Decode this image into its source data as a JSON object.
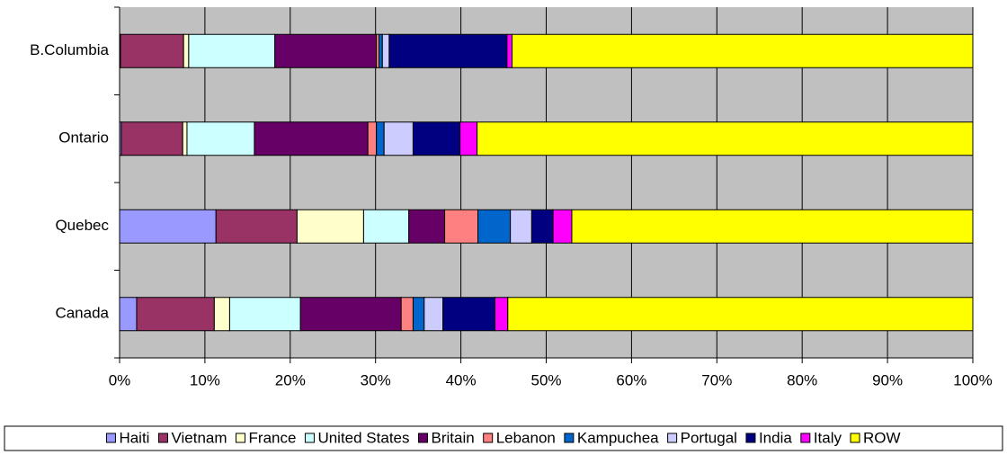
{
  "chart_data": {
    "type": "stacked_bar_horizontal",
    "categories": [
      "Canada",
      "Quebec",
      "Ontario",
      "B.Columbia"
    ],
    "series": [
      {
        "name": "Haiti",
        "color": "#9999ff",
        "values": [
          2.0,
          11.3,
          0.2,
          0.1
        ]
      },
      {
        "name": "Vietnam",
        "color": "#993366",
        "values": [
          9.1,
          9.5,
          7.2,
          7.4
        ]
      },
      {
        "name": "France",
        "color": "#ffffcc",
        "values": [
          1.8,
          7.8,
          0.5,
          0.6
        ]
      },
      {
        "name": "United States",
        "color": "#ccffff",
        "values": [
          8.3,
          5.3,
          7.9,
          10.1
        ]
      },
      {
        "name": "Britain",
        "color": "#660066",
        "values": [
          11.8,
          4.2,
          13.3,
          11.9
        ]
      },
      {
        "name": "Lebanon",
        "color": "#ff8080",
        "values": [
          1.4,
          3.9,
          1.0,
          0.3
        ]
      },
      {
        "name": "Kampuchea",
        "color": "#0066cc",
        "values": [
          1.3,
          3.8,
          0.9,
          0.4
        ]
      },
      {
        "name": "Portugal",
        "color": "#ccccff",
        "values": [
          2.2,
          2.5,
          3.4,
          0.8
        ]
      },
      {
        "name": "India",
        "color": "#000080",
        "values": [
          6.1,
          2.5,
          5.5,
          13.8
        ]
      },
      {
        "name": "Italy",
        "color": "#ff00ff",
        "values": [
          1.5,
          2.2,
          2.0,
          0.6
        ]
      },
      {
        "name": "ROW",
        "color": "#ffff00",
        "values": [
          54.5,
          47.0,
          58.1,
          54.0
        ]
      }
    ],
    "xlim": [
      0,
      100
    ],
    "xticks": [
      {
        "value": 0,
        "label": "0%"
      },
      {
        "value": 10,
        "label": "10%"
      },
      {
        "value": 20,
        "label": "20%"
      },
      {
        "value": 30,
        "label": "30%"
      },
      {
        "value": 40,
        "label": "40%"
      },
      {
        "value": 50,
        "label": "50%"
      },
      {
        "value": 60,
        "label": "60%"
      },
      {
        "value": 70,
        "label": "70%"
      },
      {
        "value": 80,
        "label": "80%"
      },
      {
        "value": 90,
        "label": "90%"
      },
      {
        "value": 100,
        "label": "100%"
      }
    ],
    "grid": true,
    "plot_background": "#c0c0c0",
    "legend": "bottom"
  }
}
